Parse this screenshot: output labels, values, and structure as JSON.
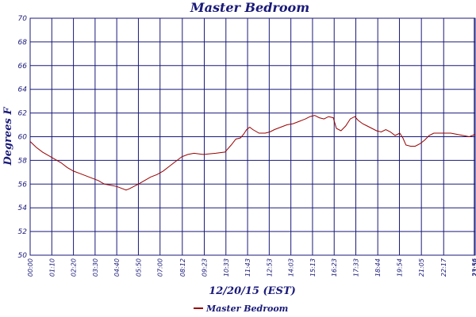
{
  "colors": {
    "axis": "#1a1a7a",
    "series": "#990000"
  },
  "chart_data": {
    "type": "line",
    "title": "Master Bedroom",
    "xlabel": "12/20/15 (EST)",
    "ylabel": "Degrees F",
    "ylim": [
      50,
      70
    ],
    "yticks": [
      50,
      52,
      54,
      56,
      58,
      60,
      62,
      64,
      66,
      68,
      70
    ],
    "xlim_minutes": [
      0,
      1439
    ],
    "xticks": [
      {
        "m": 0,
        "label": "00:00"
      },
      {
        "m": 70,
        "label": "01:10"
      },
      {
        "m": 140,
        "label": "02:20"
      },
      {
        "m": 210,
        "label": "03:30"
      },
      {
        "m": 280,
        "label": "04:40"
      },
      {
        "m": 350,
        "label": "05:50"
      },
      {
        "m": 420,
        "label": "07:00"
      },
      {
        "m": 492,
        "label": "08:12"
      },
      {
        "m": 563,
        "label": "09:23"
      },
      {
        "m": 633,
        "label": "10:33"
      },
      {
        "m": 703,
        "label": "11:43"
      },
      {
        "m": 773,
        "label": "12:53"
      },
      {
        "m": 843,
        "label": "14:03"
      },
      {
        "m": 913,
        "label": "15:13"
      },
      {
        "m": 983,
        "label": "16:23"
      },
      {
        "m": 1053,
        "label": "17:33"
      },
      {
        "m": 1124,
        "label": "18:44"
      },
      {
        "m": 1194,
        "label": "19:54"
      },
      {
        "m": 1265,
        "label": "21:05"
      },
      {
        "m": 1337,
        "label": "22:17"
      },
      {
        "m": 1436,
        "label": "23:56"
      },
      {
        "m": 1439,
        "label": "23:59"
      }
    ],
    "grid": true,
    "legend": "bottom-center",
    "series": [
      {
        "name": "Master Bedroom",
        "x_minutes": [
          0,
          20,
          40,
          60,
          80,
          100,
          120,
          140,
          160,
          180,
          200,
          220,
          240,
          260,
          280,
          300,
          310,
          320,
          335,
          350,
          370,
          390,
          410,
          430,
          450,
          470,
          490,
          510,
          530,
          560,
          600,
          630,
          650,
          665,
          680,
          690,
          700,
          710,
          720,
          740,
          760,
          775,
          790,
          810,
          830,
          850,
          870,
          890,
          905,
          920,
          935,
          950,
          965,
          980,
          990,
          1005,
          1020,
          1035,
          1050,
          1060,
          1075,
          1090,
          1105,
          1120,
          1135,
          1150,
          1165,
          1180,
          1195,
          1205,
          1215,
          1230,
          1245,
          1260,
          1275,
          1290,
          1305,
          1320,
          1340,
          1360,
          1380,
          1400,
          1420,
          1439
        ],
        "values": [
          59.6,
          59.1,
          58.7,
          58.4,
          58.1,
          57.8,
          57.4,
          57.1,
          56.9,
          56.7,
          56.5,
          56.3,
          56.0,
          55.9,
          55.8,
          55.6,
          55.5,
          55.6,
          55.8,
          56.0,
          56.3,
          56.6,
          56.8,
          57.1,
          57.5,
          57.9,
          58.3,
          58.5,
          58.6,
          58.5,
          58.6,
          58.7,
          59.3,
          59.8,
          59.9,
          60.2,
          60.6,
          60.8,
          60.6,
          60.3,
          60.3,
          60.4,
          60.6,
          60.8,
          61.0,
          61.1,
          61.3,
          61.5,
          61.7,
          61.8,
          61.6,
          61.5,
          61.7,
          61.6,
          60.7,
          60.5,
          60.9,
          61.5,
          61.7,
          61.4,
          61.1,
          60.9,
          60.7,
          60.5,
          60.4,
          60.6,
          60.4,
          60.1,
          60.3,
          59.9,
          59.3,
          59.2,
          59.2,
          59.4,
          59.7,
          60.1,
          60.3,
          60.3,
          60.3,
          60.3,
          60.2,
          60.1,
          60.0,
          60.2
        ]
      }
    ]
  }
}
